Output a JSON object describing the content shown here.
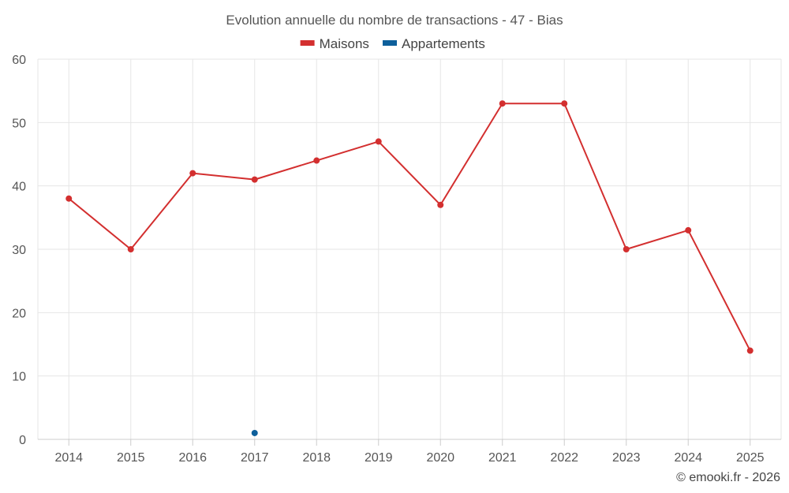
{
  "chart_data": {
    "type": "line",
    "title": "Evolution annuelle du nombre de transactions - 47 - Bias",
    "categories": [
      "2014",
      "2015",
      "2016",
      "2017",
      "2018",
      "2019",
      "2020",
      "2021",
      "2022",
      "2023",
      "2024",
      "2025"
    ],
    "ylim": [
      0,
      60
    ],
    "yticks": [
      0,
      10,
      20,
      30,
      40,
      50,
      60
    ],
    "grid": true,
    "legend_position": "top-center",
    "series": [
      {
        "name": "Maisons",
        "color": "#d32f2f",
        "values": [
          38,
          30,
          42,
          41,
          44,
          47,
          37,
          53,
          53,
          30,
          33,
          14
        ]
      },
      {
        "name": "Appartements",
        "color": "#0d5f9b",
        "values": [
          null,
          null,
          null,
          1,
          null,
          null,
          null,
          null,
          null,
          null,
          null,
          null
        ]
      }
    ]
  },
  "credit": "© emooki.fr - 2026"
}
